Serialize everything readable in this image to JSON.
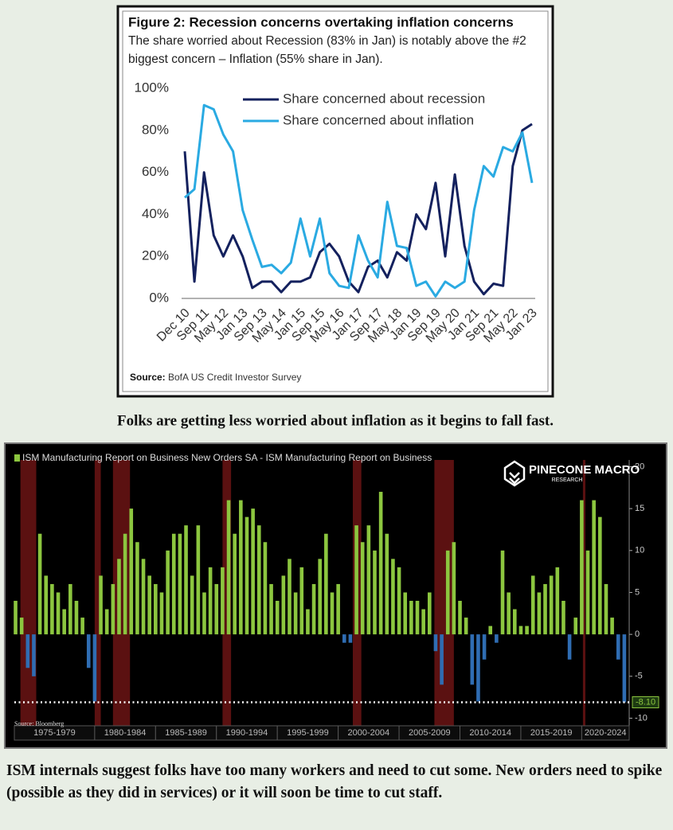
{
  "chart_data": [
    {
      "type": "line",
      "title": "Figure 2: Recession concerns overtaking inflation concerns",
      "subtitle": [
        "The share worried about Recession (83% in Jan) is notably above the #2",
        "biggest concern – Inflation (55% share in Jan)."
      ],
      "source_label": "Source:",
      "source": "BofA US Credit Investor Survey",
      "categories": [
        "Dec 10",
        null,
        "Sep 11",
        null,
        "May 12",
        null,
        "Jan 13",
        null,
        "Sep 13",
        null,
        "May 14",
        null,
        "Jan 15",
        null,
        "Sep 15",
        null,
        "May 16",
        null,
        "Jan 17",
        null,
        "Sep 17",
        null,
        "May 18",
        null,
        "Jan 19",
        null,
        "Sep 19",
        null,
        "May 20",
        null,
        "Jan 21",
        null,
        "Sep 21",
        null,
        "May 22",
        null,
        "Jan 23"
      ],
      "series": [
        {
          "name": "Share concerned about recession",
          "color": "#14215e",
          "values": [
            70,
            8,
            60,
            30,
            20,
            30,
            20,
            5,
            8,
            8,
            3,
            8,
            8,
            10,
            22,
            26,
            20,
            8,
            3,
            15,
            18,
            10,
            22,
            18,
            40,
            33,
            55,
            20,
            59,
            25,
            8,
            2,
            7,
            6,
            63,
            80,
            83
          ]
        },
        {
          "name": "Share concerned about inflation",
          "color": "#2aaae2",
          "values": [
            48,
            52,
            92,
            90,
            78,
            70,
            42,
            28,
            15,
            16,
            12,
            17,
            38,
            20,
            38,
            12,
            6,
            5,
            30,
            18,
            10,
            46,
            25,
            24,
            6,
            8,
            1,
            8,
            5,
            8,
            42,
            63,
            58,
            72,
            70,
            79,
            55
          ]
        }
      ],
      "ylim": [
        0,
        100
      ],
      "yticks": [
        {
          "value": 0,
          "label": "0%"
        },
        {
          "value": 20,
          "label": "20%"
        },
        {
          "value": 40,
          "label": "40%"
        },
        {
          "value": 60,
          "label": "60%"
        },
        {
          "value": 80,
          "label": "80%"
        },
        {
          "value": 100,
          "label": "100%"
        }
      ]
    },
    {
      "type": "bar",
      "legend": "ISM Manufacturing Report on Business New Orders SA - ISM Manufacturing Report on Business",
      "source": "Source: Bloomberg",
      "logo_title": "PINECONE MACRO",
      "logo_subtitle": "RESEARCH",
      "positive_color": "#8cc63f",
      "negative_color": "#2f6db3",
      "x": [
        1973.5,
        1974,
        1974.5,
        1975,
        1975.5,
        1976,
        1976.5,
        1977,
        1977.5,
        1978,
        1978.5,
        1979,
        1979.5,
        1980,
        1980.5,
        1981,
        1981.5,
        1982,
        1982.5,
        1983,
        1983.5,
        1984,
        1984.5,
        1985,
        1985.5,
        1986,
        1986.5,
        1987,
        1987.5,
        1988,
        1988.5,
        1989,
        1989.5,
        1990,
        1990.5,
        1991,
        1991.5,
        1992,
        1992.5,
        1993,
        1993.5,
        1994,
        1994.5,
        1995,
        1995.5,
        1996,
        1996.5,
        1997,
        1997.5,
        1998,
        1998.5,
        1999,
        1999.5,
        2000,
        2000.5,
        2001,
        2001.5,
        2002,
        2002.5,
        2003,
        2003.5,
        2004,
        2004.5,
        2005,
        2005.5,
        2006,
        2006.5,
        2007,
        2007.5,
        2008,
        2008.5,
        2009,
        2009.5,
        2010,
        2010.5,
        2011,
        2011.5,
        2012,
        2012.5,
        2013,
        2013.5,
        2014,
        2014.5,
        2015,
        2015.5,
        2016,
        2016.5,
        2017,
        2017.5,
        2018,
        2018.5,
        2019,
        2019.5,
        2020,
        2020.5,
        2021,
        2021.5,
        2022,
        2022.5,
        2023,
        2023.5
      ],
      "values": [
        4,
        2,
        -4,
        -5,
        12,
        7,
        6,
        5,
        3,
        6,
        4,
        2,
        -4,
        -8,
        7,
        3,
        6,
        9,
        12,
        15,
        11,
        9,
        7,
        6,
        5,
        10,
        12,
        12,
        13,
        7,
        13,
        5,
        8,
        6,
        8,
        16,
        12,
        16,
        14,
        15,
        13,
        11,
        6,
        4,
        7,
        9,
        5,
        8,
        3,
        6,
        9,
        12,
        5,
        6,
        -1,
        -1,
        13,
        11,
        13,
        10,
        17,
        12,
        9,
        8,
        5,
        4,
        4,
        3,
        5,
        -2,
        -6,
        10,
        11,
        4,
        2,
        -6,
        -8,
        -3,
        1,
        -1,
        10,
        5,
        3,
        1,
        1,
        7,
        5,
        6,
        7,
        8,
        4,
        -3,
        2,
        16,
        10,
        16,
        14,
        6,
        2,
        -3,
        -8.1
      ],
      "xlim": [
        1973.4,
        2023.9
      ],
      "xticks": [
        {
          "value": 1975,
          "label": "1975-1979"
        },
        {
          "value": 1980,
          "label": "1980-1984"
        },
        {
          "value": 1985,
          "label": "1985-1989"
        },
        {
          "value": 1990,
          "label": "1990-1994"
        },
        {
          "value": 1995,
          "label": "1995-1999"
        },
        {
          "value": 2000,
          "label": "2000-2004"
        },
        {
          "value": 2005,
          "label": "2005-2009"
        },
        {
          "value": 2010,
          "label": "2010-2014"
        },
        {
          "value": 2015,
          "label": "2015-2019"
        },
        {
          "value": 2020,
          "label": "2020-2024"
        }
      ],
      "ylim": [
        -10.9,
        20.8
      ],
      "yticks": [
        -10,
        -5,
        0,
        5,
        10,
        15,
        20
      ],
      "reference_line": {
        "value": -8.1,
        "label": "-8.10"
      },
      "recessions": [
        [
          1973.9,
          1975.2
        ],
        [
          1980.0,
          1980.5
        ],
        [
          1981.5,
          1982.9
        ],
        [
          1990.5,
          1991.2
        ],
        [
          2001.2,
          2001.9
        ],
        [
          2007.9,
          2009.5
        ],
        [
          2020.1,
          2020.3
        ]
      ]
    }
  ],
  "captions": [
    "Folks are getting less worried about inflation as it begins to fall fast.",
    "ISM internals suggest folks have too many workers and need to cut some. New orders need to spike (possible as they did in services) or it will soon be time to cut staff."
  ]
}
